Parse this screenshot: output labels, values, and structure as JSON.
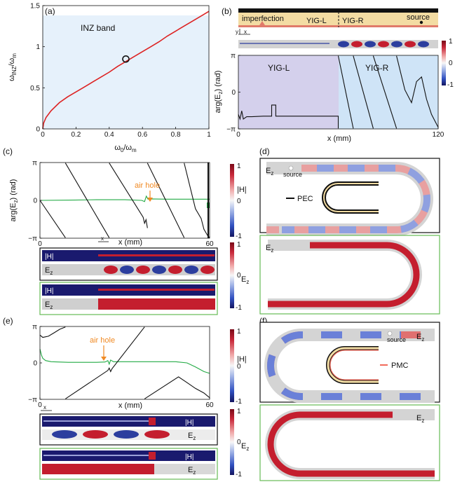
{
  "panel_labels": [
    "(a)",
    "(b)",
    "(c)",
    "(d)",
    "(e)",
    "(f)"
  ],
  "colors": {
    "inz_curve": "#dd2222",
    "band_fill": "#e6f1fb",
    "yig_l_fill": "#d4d0ec",
    "yig_r_fill": "#cfe4f7",
    "phase_line": "#111111",
    "abs_line": "#22aa44",
    "annotation": "#f08a24",
    "green_frame": "#66bb55",
    "black_frame": "#111111",
    "pmc_line": "#f26a5a",
    "cmap_high": "#b2182b",
    "cmap_mid": "#f7f7f7",
    "cmap_low": "#2135a6",
    "cmap_dark": "#1a1a6e"
  },
  "panel_b_schematic": {
    "imperfection_label": "imperfection",
    "yig_l_label": "YIG-L",
    "yig_r_label": "YIG-R",
    "source_label": "source",
    "axis_y": "y",
    "axis_x": "x"
  },
  "field_labels": {
    "ez": "E",
    "ez_sub": "z",
    "h_abs": "|H|",
    "source": "source",
    "pec": "PEC",
    "pmc": "PMC"
  },
  "annotations": {
    "air_hole": "air hole"
  },
  "colorbars": {
    "b_ticks": [
      "1",
      "0",
      "-1"
    ],
    "h_ticks": [
      "1",
      "0",
      "-1"
    ],
    "ez_ticks": [
      "1",
      "0",
      "-1"
    ]
  },
  "chart_data": [
    {
      "id": "a",
      "type": "line",
      "region_label": "INZ band",
      "xlabel": "ω0/ωm",
      "ylabel": "ωINZ/ωm",
      "xlim": [
        0,
        1
      ],
      "ylim": [
        0,
        1.5
      ],
      "xticks": [
        "0",
        "0.2",
        "0.4",
        "0.6",
        "0.8",
        "1"
      ],
      "yticks": [
        "0",
        "0.5",
        "1",
        "1.5"
      ],
      "x": [
        0,
        0.005,
        0.02,
        0.05,
        0.1,
        0.15,
        0.2,
        0.25,
        0.3,
        0.35,
        0.4,
        0.45,
        0.5,
        0.55,
        0.6,
        0.65,
        0.7,
        0.75,
        0.8,
        0.85,
        0.9,
        0.95,
        1.0
      ],
      "y": [
        0,
        0.07,
        0.14,
        0.22,
        0.32,
        0.39,
        0.45,
        0.51,
        0.57,
        0.63,
        0.69,
        0.76,
        0.82,
        0.88,
        0.94,
        1.0,
        1.06,
        1.13,
        1.19,
        1.25,
        1.31,
        1.37,
        1.43
      ],
      "marker": {
        "x": 0.5,
        "y": 0.85
      }
    },
    {
      "id": "b",
      "type": "line",
      "ylabel": "arg(E",
      "ylabel_sub": "z",
      "ylabel_tail": ") (rad)",
      "xlabel": "x (mm)",
      "xlim": [
        0,
        120
      ],
      "ylim": [
        -3.1416,
        3.1416
      ],
      "xticks": [
        "0",
        "120"
      ],
      "yticks": [
        "π",
        "0",
        "−π"
      ],
      "region_labels": [
        "YIG-L",
        "YIG-R"
      ],
      "boundary_x": 60,
      "x": [
        0,
        1,
        2,
        3,
        5,
        8,
        15,
        20,
        20,
        22.5,
        22.5,
        25,
        25,
        30,
        40,
        50,
        60,
        60,
        60,
        69,
        69,
        69,
        81,
        81,
        81,
        95,
        95,
        95,
        100,
        104,
        107,
        110,
        113,
        116,
        120
      ],
      "y": [
        -1.9,
        -2.3,
        -1.6,
        -2.3,
        -2.1,
        -2.1,
        -2.05,
        -2.05,
        -1.1,
        -1.1,
        -2.05,
        -2.05,
        -2.05,
        -2.05,
        -2.05,
        -2.05,
        -2.05,
        -3.1,
        3.1,
        -3.1,
        3.1,
        3.1,
        -3.1,
        3.1,
        3.1,
        -3.1,
        3.1,
        3.1,
        0.2,
        -0.9,
        0.9,
        1.3,
        -0.6,
        -1.9,
        -3.0
      ]
    },
    {
      "id": "c",
      "type": "line",
      "ylabel": "arg(E",
      "ylabel_sub": "z",
      "ylabel_tail": ") (rad)",
      "xlabel": "x (mm)",
      "xlim": [
        0,
        60
      ],
      "ylim": [
        -3.1416,
        3.1416
      ],
      "xticks": [
        "0",
        "60"
      ],
      "yticks": [
        "π",
        "0",
        "−π"
      ],
      "series": [
        {
          "role": "phase",
          "x": [
            0,
            9,
            9,
            9,
            24.5,
            24.5,
            24.5,
            36.5,
            37,
            37.5,
            38,
            38,
            38,
            51,
            51,
            51,
            55,
            57,
            58,
            59.5,
            60
          ],
          "y": [
            0,
            -3.1,
            3.1,
            3.1,
            -3.1,
            3.1,
            3.1,
            -1.4,
            -1.9,
            -1.6,
            -2.3,
            3.1,
            3.1,
            -3.1,
            3.1,
            3.1,
            -0.7,
            -1.5,
            -2.4,
            -3.0,
            -3.1
          ]
        },
        {
          "role": "abs",
          "x": [
            0,
            10,
            20,
            30,
            36,
            37,
            37.6,
            38.2,
            39,
            45,
            55,
            57,
            59,
            60
          ],
          "y": [
            0,
            0.02,
            0.05,
            0.05,
            0.0,
            -0.1,
            0.35,
            0.1,
            0.12,
            0.1,
            0.1,
            0.1,
            0.1,
            0.1
          ]
        }
      ]
    },
    {
      "id": "e",
      "type": "line",
      "xlabel": "x (mm)",
      "xlim": [
        0,
        60
      ],
      "ylim": [
        -3.1416,
        3.1416
      ],
      "xticks": [
        "0",
        "60"
      ],
      "yticks": [
        "π",
        "0",
        "−π"
      ],
      "series": [
        {
          "role": "phase",
          "x": [
            0,
            1,
            3,
            5,
            7,
            9,
            9,
            9,
            24,
            24.5,
            25,
            25.5,
            37,
            37,
            37,
            49,
            52,
            55,
            58,
            60
          ],
          "y": [
            2.4,
            2.2,
            2.3,
            2.6,
            2.9,
            3.1,
            -3.1,
            -3.1,
            -0.65,
            -0.45,
            -0.75,
            -0.5,
            3.1,
            -3.1,
            -3.1,
            -1.2,
            -1.7,
            -2.2,
            -2.6,
            -3.0
          ]
        },
        {
          "role": "abs",
          "x": [
            0,
            0.5,
            1,
            2,
            4,
            10,
            20,
            23,
            24,
            24.5,
            25,
            26,
            30,
            40,
            48,
            52,
            55,
            58,
            60
          ],
          "y": [
            1.2,
            0.7,
            0.4,
            0.2,
            0.1,
            0.05,
            0.05,
            0.08,
            0.2,
            -0.1,
            0.25,
            0.1,
            0.1,
            0.1,
            0.1,
            0.0,
            -0.35,
            -0.75,
            -0.9
          ]
        }
      ]
    }
  ]
}
